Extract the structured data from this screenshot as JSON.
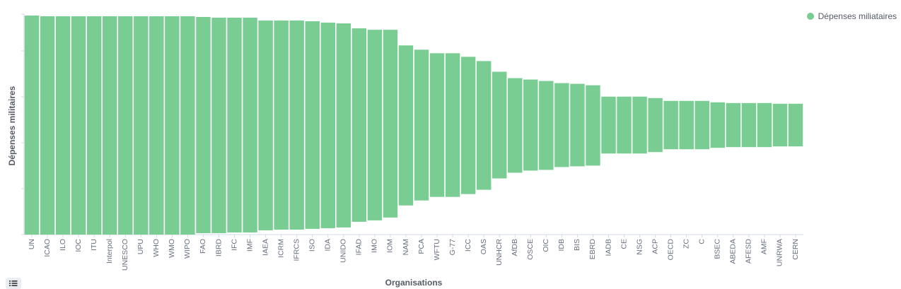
{
  "chart_data": {
    "type": "bar",
    "series_name": "Dépenses miliataires",
    "xlabel": "Organisations",
    "ylabel": "Dépenses militaires",
    "legend_position": "top-right",
    "color": "#79cd92",
    "categories": [
      "UN",
      "ICAO",
      "ILO",
      "IOC",
      "ITU",
      "Interpol",
      "UNESCO",
      "UPU",
      "WHO",
      "WMO",
      "WIPO",
      "FAO",
      "IBRD",
      "IFC",
      "IMF",
      "IAEA",
      "ICRM",
      "IFRCS",
      "ISO",
      "IDA",
      "UNIDO",
      "IFAD",
      "IMO",
      "IOM",
      "NAM",
      "PCA",
      "WFTU",
      "G-77",
      "ICC",
      "OAS",
      "UNHCR",
      "AfDB",
      "OSCE",
      "OIC",
      "IDB",
      "BIS",
      "EBRD",
      "IADB",
      "CE",
      "NSG",
      "ACP",
      "OECD",
      "ZC",
      "C",
      "BSEC",
      "ABEDA",
      "AFESD",
      "AMF",
      "UNRWA",
      "CERN"
    ],
    "values": [
      [
        0,
        308
      ],
      [
        0,
        307
      ],
      [
        0,
        307
      ],
      [
        0,
        307
      ],
      [
        0,
        307
      ],
      [
        0,
        307
      ],
      [
        0,
        307
      ],
      [
        0,
        307
      ],
      [
        0,
        307
      ],
      [
        0,
        307
      ],
      [
        0,
        307
      ],
      [
        2,
        306
      ],
      [
        2,
        305
      ],
      [
        3,
        305
      ],
      [
        3,
        305
      ],
      [
        6,
        301
      ],
      [
        7,
        301
      ],
      [
        7,
        301
      ],
      [
        8,
        300
      ],
      [
        9,
        298
      ],
      [
        10,
        297
      ],
      [
        18,
        290
      ],
      [
        20,
        288
      ],
      [
        24,
        288
      ],
      [
        41,
        266
      ],
      [
        48,
        260
      ],
      [
        53,
        255
      ],
      [
        53,
        255
      ],
      [
        57,
        250
      ],
      [
        63,
        244
      ],
      [
        79,
        229
      ],
      [
        87,
        220
      ],
      [
        90,
        218
      ],
      [
        91,
        216
      ],
      [
        95,
        213
      ],
      [
        96,
        212
      ],
      [
        97,
        210
      ],
      [
        114,
        194
      ],
      [
        114,
        194
      ],
      [
        114,
        194
      ],
      [
        116,
        192
      ],
      [
        120,
        188
      ],
      [
        120,
        188
      ],
      [
        120,
        188
      ],
      [
        122,
        186
      ],
      [
        123,
        185
      ],
      [
        123,
        185
      ],
      [
        123,
        185
      ],
      [
        124,
        184
      ],
      [
        124,
        184
      ]
    ],
    "ylim": [
      0,
      310
    ],
    "grid": false
  },
  "legend_toggle_icon": "list-icon"
}
